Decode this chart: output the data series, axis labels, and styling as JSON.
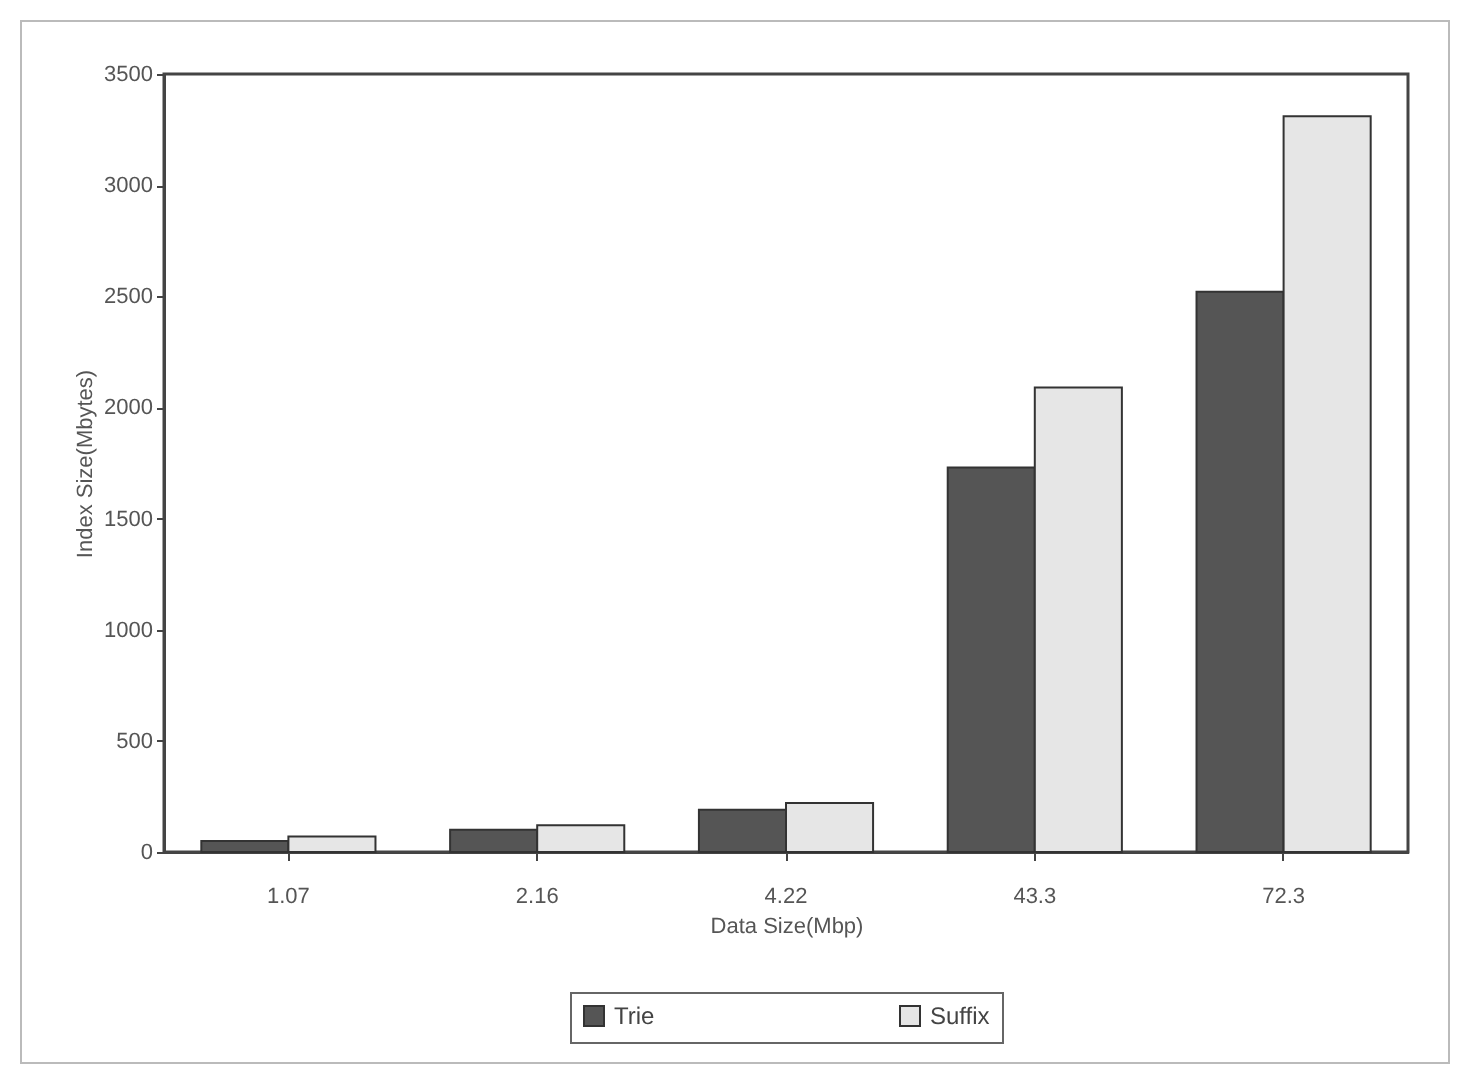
{
  "chart_data": {
    "type": "bar",
    "xlabel": "Data Size(Mbp)",
    "ylabel": "Index Size(Mbytes)",
    "categories": [
      "1.07",
      "2.16",
      "4.22",
      "43.3",
      "72.3"
    ],
    "series": [
      {
        "name": "Trie",
        "color": "#555555",
        "values": [
          50,
          100,
          190,
          1730,
          2520
        ]
      },
      {
        "name": "Suffix",
        "color": "#e6e6e6",
        "values": [
          70,
          120,
          220,
          2090,
          3310
        ]
      }
    ],
    "ylim": [
      0,
      3500
    ],
    "yticks": [
      0,
      500,
      1000,
      1500,
      2000,
      2500,
      3000,
      3500
    ],
    "grid": false,
    "legend": "bottom"
  }
}
